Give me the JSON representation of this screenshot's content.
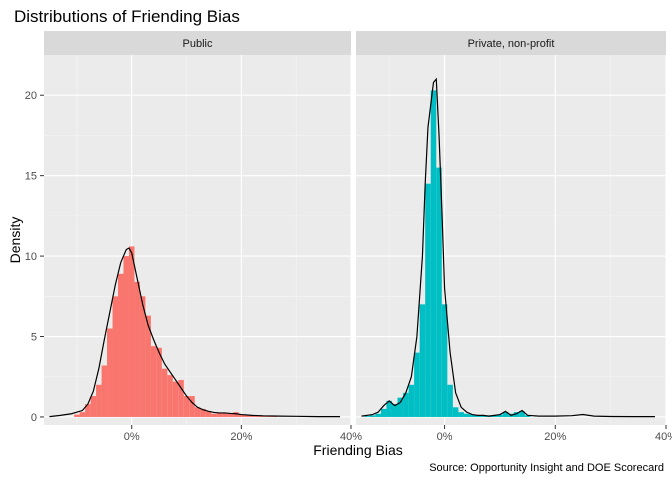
{
  "chart_data": {
    "type": "histogram",
    "title": "Distributions of Friending Bias",
    "xlabel": "Friending Bias",
    "ylabel": "Density",
    "caption": "Source: Opportunity Insight and DOE Scorecard",
    "xlim": [
      -0.16,
      0.4
    ],
    "ylim": [
      -0.5,
      22.5
    ],
    "x_ticks": [
      0,
      0.2,
      0.4
    ],
    "x_tick_labels": [
      "0%",
      "20%",
      "40%"
    ],
    "y_ticks": [
      0,
      5,
      10,
      15,
      20
    ],
    "y_tick_labels": [
      "0",
      "5",
      "10",
      "15",
      "20"
    ],
    "grid": true,
    "legend": "none",
    "bin_width": 0.01,
    "panels": [
      {
        "name": "Public",
        "color": "#F8766D",
        "bins": [
          [
            -0.1,
            0.15
          ],
          [
            -0.09,
            0.3
          ],
          [
            -0.08,
            0.8
          ],
          [
            -0.07,
            1.3
          ],
          [
            -0.06,
            2.0
          ],
          [
            -0.05,
            3.2
          ],
          [
            -0.04,
            5.5
          ],
          [
            -0.03,
            7.5
          ],
          [
            -0.02,
            8.9
          ],
          [
            -0.01,
            10.0
          ],
          [
            0.0,
            10.6
          ],
          [
            0.01,
            8.4
          ],
          [
            0.02,
            7.5
          ],
          [
            0.03,
            6.3
          ],
          [
            0.04,
            4.4
          ],
          [
            0.05,
            4.3
          ],
          [
            0.06,
            3.0
          ],
          [
            0.07,
            2.6
          ],
          [
            0.08,
            2.2
          ],
          [
            0.09,
            2.3
          ],
          [
            0.1,
            1.3
          ],
          [
            0.11,
            1.3
          ],
          [
            0.12,
            0.6
          ],
          [
            0.13,
            0.5
          ],
          [
            0.14,
            0.35
          ],
          [
            0.15,
            0.2
          ],
          [
            0.16,
            0.25
          ],
          [
            0.17,
            0.25
          ],
          [
            0.18,
            0.2
          ],
          [
            0.19,
            0.3
          ],
          [
            0.2,
            0.15
          ],
          [
            0.21,
            0.15
          ],
          [
            0.22,
            0.1
          ],
          [
            0.23,
            0.1
          ],
          [
            0.24,
            0.08
          ],
          [
            0.25,
            0.05
          ],
          [
            0.26,
            0.05
          ]
        ],
        "density": [
          [
            -0.15,
            0.02
          ],
          [
            -0.13,
            0.1
          ],
          [
            -0.11,
            0.2
          ],
          [
            -0.09,
            0.4
          ],
          [
            -0.08,
            0.8
          ],
          [
            -0.07,
            1.6
          ],
          [
            -0.06,
            3.0
          ],
          [
            -0.05,
            4.8
          ],
          [
            -0.04,
            6.5
          ],
          [
            -0.03,
            8.2
          ],
          [
            -0.02,
            9.6
          ],
          [
            -0.01,
            10.4
          ],
          [
            -0.005,
            10.5
          ],
          [
            0.0,
            10.2
          ],
          [
            0.01,
            8.6
          ],
          [
            0.02,
            7.0
          ],
          [
            0.03,
            5.7
          ],
          [
            0.04,
            4.8
          ],
          [
            0.05,
            4.0
          ],
          [
            0.06,
            3.3
          ],
          [
            0.07,
            2.8
          ],
          [
            0.08,
            2.3
          ],
          [
            0.09,
            1.8
          ],
          [
            0.1,
            1.3
          ],
          [
            0.11,
            0.9
          ],
          [
            0.12,
            0.6
          ],
          [
            0.13,
            0.45
          ],
          [
            0.14,
            0.35
          ],
          [
            0.15,
            0.28
          ],
          [
            0.16,
            0.25
          ],
          [
            0.17,
            0.25
          ],
          [
            0.18,
            0.22
          ],
          [
            0.19,
            0.2
          ],
          [
            0.2,
            0.15
          ],
          [
            0.22,
            0.1
          ],
          [
            0.24,
            0.07
          ],
          [
            0.27,
            0.05
          ],
          [
            0.3,
            0.04
          ],
          [
            0.34,
            0.02
          ],
          [
            0.38,
            0.02
          ]
        ]
      },
      {
        "name": "Private, non-profit",
        "color": "#00BFC4",
        "bins": [
          [
            -0.14,
            0.05
          ],
          [
            -0.13,
            0.1
          ],
          [
            -0.12,
            0.2
          ],
          [
            -0.11,
            0.5
          ],
          [
            -0.1,
            1.0
          ],
          [
            -0.09,
            0.8
          ],
          [
            -0.08,
            1.2
          ],
          [
            -0.07,
            1.5
          ],
          [
            -0.06,
            2.0
          ],
          [
            -0.05,
            4.0
          ],
          [
            -0.04,
            7.0
          ],
          [
            -0.03,
            14.5
          ],
          [
            -0.02,
            20.3
          ],
          [
            -0.01,
            15.5
          ],
          [
            0.0,
            7.0
          ],
          [
            0.01,
            2.0
          ],
          [
            0.02,
            0.6
          ],
          [
            0.03,
            0.3
          ],
          [
            0.04,
            0.2
          ],
          [
            0.05,
            0.15
          ],
          [
            0.06,
            0.1
          ],
          [
            0.07,
            0.1
          ],
          [
            0.08,
            0.1
          ],
          [
            0.09,
            0.1
          ],
          [
            0.1,
            0.15
          ],
          [
            0.11,
            0.3
          ],
          [
            0.12,
            0.2
          ],
          [
            0.13,
            0.3
          ],
          [
            0.14,
            0.35
          ],
          [
            0.15,
            0.1
          ]
        ],
        "density": [
          [
            -0.15,
            0.05
          ],
          [
            -0.13,
            0.15
          ],
          [
            -0.12,
            0.3
          ],
          [
            -0.11,
            0.7
          ],
          [
            -0.1,
            1.0
          ],
          [
            -0.09,
            0.7
          ],
          [
            -0.08,
            0.9
          ],
          [
            -0.07,
            1.5
          ],
          [
            -0.06,
            2.5
          ],
          [
            -0.05,
            5.0
          ],
          [
            -0.04,
            10.0
          ],
          [
            -0.035,
            14.5
          ],
          [
            -0.03,
            18.0
          ],
          [
            -0.02,
            20.8
          ],
          [
            -0.015,
            21.0
          ],
          [
            -0.01,
            17.5
          ],
          [
            -0.005,
            13.0
          ],
          [
            0.0,
            8.0
          ],
          [
            0.01,
            4.0
          ],
          [
            0.02,
            1.5
          ],
          [
            0.03,
            0.6
          ],
          [
            0.04,
            0.3
          ],
          [
            0.05,
            0.15
          ],
          [
            0.06,
            0.1
          ],
          [
            0.07,
            0.1
          ],
          [
            0.08,
            0.05
          ],
          [
            0.09,
            0.1
          ],
          [
            0.1,
            0.15
          ],
          [
            0.11,
            0.35
          ],
          [
            0.12,
            0.1
          ],
          [
            0.13,
            0.2
          ],
          [
            0.14,
            0.4
          ],
          [
            0.15,
            0.1
          ],
          [
            0.17,
            0.05
          ],
          [
            0.2,
            0.05
          ],
          [
            0.23,
            0.08
          ],
          [
            0.25,
            0.15
          ],
          [
            0.27,
            0.05
          ],
          [
            0.3,
            0.03
          ],
          [
            0.34,
            0.02
          ],
          [
            0.38,
            0.02
          ]
        ]
      }
    ]
  }
}
